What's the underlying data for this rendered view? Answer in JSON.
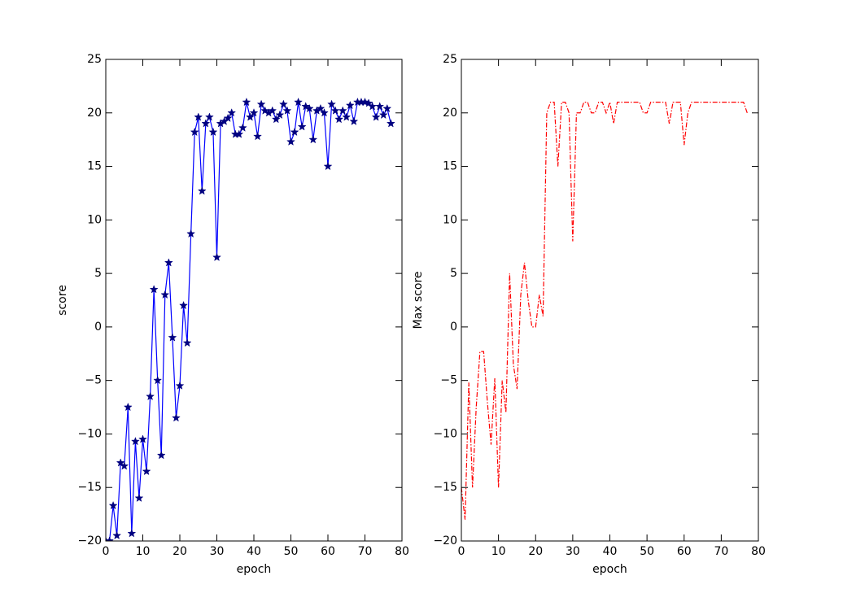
{
  "chart_data": [
    {
      "type": "line",
      "xlabel": "epoch",
      "ylabel": "score",
      "xlim": [
        0,
        80
      ],
      "ylim": [
        -20,
        25
      ],
      "xticks": [
        0,
        10,
        20,
        30,
        40,
        50,
        60,
        70,
        80
      ],
      "yticks": [
        {
          "value": -20,
          "label": "−20"
        },
        {
          "value": -15,
          "label": "−15"
        },
        {
          "value": -10,
          "label": "−10"
        },
        {
          "value": -5,
          "label": "−5"
        },
        0,
        5,
        10,
        15,
        20,
        25
      ],
      "x": [
        0,
        1,
        2,
        3,
        4,
        5,
        6,
        7,
        8,
        9,
        10,
        11,
        12,
        13,
        14,
        15,
        16,
        17,
        18,
        19,
        20,
        21,
        22,
        23,
        24,
        25,
        26,
        27,
        28,
        29,
        30,
        31,
        32,
        33,
        34,
        35,
        36,
        37,
        38,
        39,
        40,
        41,
        42,
        43,
        44,
        45,
        46,
        47,
        48,
        49,
        50,
        51,
        52,
        53,
        54,
        55,
        56,
        57,
        58,
        59,
        60,
        61,
        62,
        63,
        64,
        65,
        66,
        67,
        68,
        69,
        70,
        71,
        72,
        73,
        74,
        75,
        76,
        77
      ],
      "series": [
        {
          "color": "#0000ff",
          "line_style": "solid",
          "marker": "star",
          "marker_color": "#000080",
          "values": [
            -20,
            -20,
            -16.7,
            -19.5,
            -12.7,
            -13,
            -7.5,
            -19.3,
            -10.7,
            -16,
            -10.5,
            -13.5,
            -6.5,
            3.5,
            -5,
            -12,
            3,
            6,
            -1,
            -8.5,
            -5.5,
            2,
            -1.5,
            8.7,
            18.2,
            19.6,
            12.7,
            19,
            19.6,
            18.2,
            6.5,
            19,
            19.2,
            19.5,
            20,
            18,
            18,
            18.6,
            21,
            19.6,
            20,
            17.8,
            20.8,
            20.2,
            20,
            20.2,
            19.4,
            19.8,
            20.8,
            20.2,
            17.3,
            18.2,
            21,
            18.7,
            20.6,
            20.4,
            17.5,
            20.2,
            20.4,
            20,
            15,
            20.8,
            20.2,
            19.4,
            20.2,
            19.6,
            20.7,
            19.2,
            21,
            21,
            21,
            20.9,
            20.6,
            19.6,
            20.6,
            19.8,
            20.4,
            19
          ]
        }
      ]
    },
    {
      "type": "line",
      "xlabel": "epoch",
      "ylabel": "Max score",
      "xlim": [
        0,
        80
      ],
      "ylim": [
        -20,
        25
      ],
      "xticks": [
        0,
        10,
        20,
        30,
        40,
        50,
        60,
        70,
        80
      ],
      "yticks": [
        {
          "value": -20,
          "label": "−20"
        },
        {
          "value": -15,
          "label": "−15"
        },
        {
          "value": -10,
          "label": "−10"
        },
        {
          "value": -5,
          "label": "−5"
        },
        0,
        5,
        10,
        15,
        20,
        25
      ],
      "x": [
        0,
        1,
        2,
        3,
        4,
        5,
        6,
        7,
        8,
        9,
        10,
        11,
        12,
        13,
        14,
        15,
        16,
        17,
        18,
        19,
        20,
        21,
        22,
        23,
        24,
        25,
        26,
        27,
        28,
        29,
        30,
        31,
        32,
        33,
        34,
        35,
        36,
        37,
        38,
        39,
        40,
        41,
        42,
        43,
        44,
        45,
        46,
        47,
        48,
        49,
        50,
        51,
        52,
        53,
        54,
        55,
        56,
        57,
        58,
        59,
        60,
        61,
        62,
        63,
        64,
        65,
        66,
        67,
        68,
        69,
        70,
        71,
        72,
        73,
        74,
        75,
        76,
        77
      ],
      "series": [
        {
          "color": "#ff0000",
          "line_style": "dashdot",
          "marker": "none",
          "values": [
            -15,
            -18,
            -5.2,
            -15,
            -7.5,
            -2.3,
            -2.3,
            -7,
            -11,
            -4.8,
            -15,
            -5,
            -8,
            5,
            -3.5,
            -5.8,
            3,
            6,
            2.5,
            0,
            0,
            3,
            1,
            20,
            21,
            21,
            15,
            21,
            21,
            20,
            8,
            20,
            20,
            21,
            21,
            20,
            20,
            21,
            21,
            20,
            21,
            19,
            21,
            21,
            21,
            21,
            21,
            21,
            21,
            20,
            20,
            21,
            21,
            21,
            21,
            21,
            19,
            21,
            21,
            21,
            17,
            20,
            21,
            21,
            21,
            21,
            21,
            21,
            21,
            21,
            21,
            21,
            21,
            21,
            21,
            21,
            21,
            20
          ]
        }
      ]
    }
  ]
}
